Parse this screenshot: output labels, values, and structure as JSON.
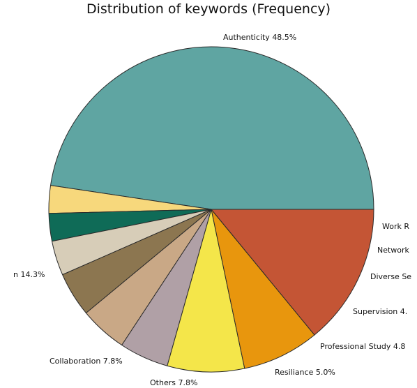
{
  "chart_data": {
    "type": "pie",
    "title": "Distribution of keywords (Frequency)",
    "slices": [
      {
        "label": "Authenticity  48.5%",
        "value": 48.5,
        "color": "#5fa5a2"
      },
      {
        "label": "Work R",
        "value": 2.8,
        "color": "#f7d87c"
      },
      {
        "label": "Network",
        "value": 2.8,
        "color": "#0f6b57"
      },
      {
        "label": "Diverse Se",
        "value": 3.5,
        "color": "#d7cdb8"
      },
      {
        "label": "Supervision  4.",
        "value": 4.5,
        "color": "#8c7650"
      },
      {
        "label": "Professional Study  4.8",
        "value": 4.8,
        "color": "#c9a886"
      },
      {
        "label": "Resiliance  5.0%",
        "value": 5.0,
        "color": "#b0a0a6"
      },
      {
        "label": "Others  7.8%",
        "value": 7.8,
        "color": "#f4e64a"
      },
      {
        "label": "Collaboration  7.8%",
        "value": 7.8,
        "color": "#e8960d"
      },
      {
        "label": "n  14.3%",
        "value": 14.3,
        "color": "#c45535"
      }
    ]
  }
}
